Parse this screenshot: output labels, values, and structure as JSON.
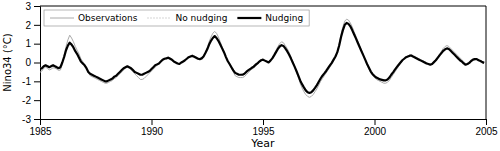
{
  "chart_data": {
    "type": "line",
    "xlabel": "Year",
    "ylabel": "Nino34 (°C)",
    "xlim": [
      1985,
      2005
    ],
    "ylim": [
      -3,
      3
    ],
    "xticks": [
      1985,
      1990,
      1995,
      2000,
      2005
    ],
    "yticks": [
      -3,
      -2,
      -1,
      0,
      1,
      2,
      3
    ],
    "grid": false,
    "legend": "upper left",
    "x": [
      1985,
      1985.0833333333333,
      1985.1666666666667,
      1985.25,
      1985.3333333333333,
      1985.4166666666667,
      1985.5,
      1985.5833333333333,
      1985.6666666666667,
      1985.75,
      1985.8333333333333,
      1985.9166666666667,
      1986,
      1986.0833333333333,
      1986.1666666666667,
      1986.25,
      1986.3333333333333,
      1986.4166666666667,
      1986.5,
      1986.5833333333333,
      1986.6666666666667,
      1986.75,
      1986.8333333333333,
      1986.9166666666667,
      1987,
      1987.0833333333333,
      1987.1666666666667,
      1987.25,
      1987.3333333333333,
      1987.4166666666667,
      1987.5,
      1987.5833333333333,
      1987.6666666666667,
      1987.75,
      1987.8333333333333,
      1987.9166666666667,
      1988,
      1988.0833333333333,
      1988.1666666666667,
      1988.25,
      1988.3333333333333,
      1988.4166666666667,
      1988.5,
      1988.5833333333333,
      1988.6666666666667,
      1988.75,
      1988.8333333333333,
      1988.9166666666667,
      1989,
      1989.0833333333333,
      1989.1666666666667,
      1989.25,
      1989.3333333333333,
      1989.4166666666667,
      1989.5,
      1989.5833333333333,
      1989.6666666666667,
      1989.75,
      1989.8333333333333,
      1989.9166666666667,
      1990,
      1990.0833333333333,
      1990.1666666666667,
      1990.25,
      1990.3333333333333,
      1990.4166666666667,
      1990.5,
      1990.5833333333333,
      1990.6666666666667,
      1990.75,
      1990.8333333333333,
      1990.9166666666667,
      1991,
      1991.0833333333333,
      1991.1666666666667,
      1991.25,
      1991.3333333333333,
      1991.4166666666667,
      1991.5,
      1991.5833333333333,
      1991.6666666666667,
      1991.75,
      1991.8333333333333,
      1991.9166666666667,
      1992,
      1992.0833333333333,
      1992.1666666666667,
      1992.25,
      1992.3333333333333,
      1992.4166666666667,
      1992.5,
      1992.5833333333333,
      1992.6666666666667,
      1992.75,
      1992.8333333333333,
      1992.9166666666667,
      1993,
      1993.0833333333333,
      1993.1666666666667,
      1993.25,
      1993.3333333333333,
      1993.4166666666667,
      1993.5,
      1993.5833333333333,
      1993.6666666666667,
      1993.75,
      1993.8333333333333,
      1993.9166666666667,
      1994,
      1994.0833333333333,
      1994.1666666666667,
      1994.25,
      1994.3333333333333,
      1994.4166666666667,
      1994.5,
      1994.5833333333333,
      1994.6666666666667,
      1994.75,
      1994.8333333333333,
      1994.9166666666667,
      1995,
      1995.0833333333333,
      1995.1666666666667,
      1995.25,
      1995.3333333333333,
      1995.4166666666667,
      1995.5,
      1995.5833333333333,
      1995.6666666666667,
      1995.75,
      1995.8333333333333,
      1995.9166666666667,
      1996,
      1996.0833333333333,
      1996.1666666666667,
      1996.25,
      1996.3333333333333,
      1996.4166666666667,
      1996.5,
      1996.5833333333333,
      1996.6666666666667,
      1996.75,
      1996.8333333333333,
      1996.9166666666667,
      1997,
      1997.0833333333333,
      1997.1666666666667,
      1997.25,
      1997.3333333333333,
      1997.4166666666667,
      1997.5,
      1997.5833333333333,
      1997.6666666666667,
      1997.75,
      1997.8333333333333,
      1997.9166666666667,
      1998,
      1998.0833333333333,
      1998.1666666666667,
      1998.25,
      1998.3333333333333,
      1998.4166666666667,
      1998.5,
      1998.5833333333333,
      1998.6666666666667,
      1998.75,
      1998.8333333333333,
      1998.9166666666667,
      1999,
      1999.0833333333333,
      1999.1666666666667,
      1999.25,
      1999.3333333333333,
      1999.4166666666667,
      1999.5,
      1999.5833333333333,
      1999.6666666666667,
      1999.75,
      1999.8333333333333,
      1999.9166666666667,
      2000,
      2000.0833333333333,
      2000.1666666666667,
      2000.25,
      2000.3333333333333,
      2000.4166666666667,
      2000.5,
      2000.5833333333333,
      2000.6666666666667,
      2000.75,
      2000.8333333333333,
      2000.9166666666667,
      2001,
      2001.0833333333333,
      2001.1666666666667,
      2001.25,
      2001.3333333333333,
      2001.4166666666667,
      2001.5,
      2001.5833333333333,
      2001.6666666666667,
      2001.75,
      2001.8333333333333,
      2001.9166666666667,
      2002,
      2002.0833333333333,
      2002.1666666666667,
      2002.25,
      2002.3333333333333,
      2002.4166666666667,
      2002.5,
      2002.5833333333333,
      2002.6666666666667,
      2002.75,
      2002.8333333333333,
      2002.9166666666667,
      2003,
      2003.0833333333333,
      2003.1666666666667,
      2003.25,
      2003.3333333333333,
      2003.4166666666667,
      2003.5,
      2003.5833333333333,
      2003.6666666666667,
      2003.75,
      2003.8333333333333,
      2003.9166666666667,
      2004,
      2004.0833333333333,
      2004.1666666666667,
      2004.25,
      2004.3333333333333,
      2004.4166666666667,
      2004.5,
      2004.5833333333333,
      2004.6666666666667,
      2004.75,
      2004.8333333333333,
      2004.9166666666667
    ],
    "series": [
      {
        "name": "Observations",
        "color": "#aaaaaa",
        "line_style": "solid",
        "values": [
          -0.52,
          -0.45,
          -0.3,
          -0.25,
          -0.3,
          -0.4,
          -0.35,
          -0.28,
          -0.3,
          -0.35,
          -0.42,
          -0.4,
          -0.1,
          0.4,
          0.85,
          1.2,
          1.45,
          1.3,
          1.1,
          0.85,
          0.65,
          0.45,
          0.2,
          0.05,
          -0.1,
          -0.3,
          -0.55,
          -0.7,
          -0.75,
          -0.8,
          -0.85,
          -0.9,
          -0.95,
          -1.0,
          -1.05,
          -1.1,
          -1.1,
          -1.05,
          -1.0,
          -0.95,
          -0.85,
          -0.8,
          -0.7,
          -0.6,
          -0.5,
          -0.4,
          -0.3,
          -0.25,
          -0.3,
          -0.4,
          -0.5,
          -0.6,
          -0.7,
          -0.8,
          -0.9,
          -0.9,
          -0.85,
          -0.75,
          -0.65,
          -0.55,
          -0.45,
          -0.35,
          -0.25,
          -0.15,
          -0.1,
          0.05,
          0.15,
          0.2,
          0.25,
          0.3,
          0.25,
          0.2,
          0.1,
          0.0,
          -0.05,
          -0.1,
          -0.05,
          0.0,
          0.1,
          0.2,
          0.3,
          0.35,
          0.4,
          0.35,
          0.3,
          0.25,
          0.2,
          0.25,
          0.35,
          0.55,
          0.8,
          1.1,
          1.35,
          1.55,
          1.65,
          1.55,
          1.35,
          1.1,
          0.85,
          0.6,
          0.35,
          0.1,
          -0.1,
          -0.3,
          -0.5,
          -0.7,
          -0.75,
          -0.8,
          -0.8,
          -0.8,
          -0.75,
          -0.65,
          -0.55,
          -0.45,
          -0.35,
          -0.3,
          -0.2,
          -0.1,
          0.0,
          0.1,
          0.15,
          0.1,
          0.05,
          0.0,
          0.1,
          0.25,
          0.45,
          0.65,
          0.85,
          1.0,
          1.1,
          1.05,
          0.9,
          0.75,
          0.55,
          0.3,
          0.05,
          -0.2,
          -0.5,
          -0.8,
          -1.1,
          -1.35,
          -1.55,
          -1.7,
          -1.8,
          -1.85,
          -1.8,
          -1.7,
          -1.55,
          -1.4,
          -1.2,
          -1.0,
          -0.85,
          -0.7,
          -0.55,
          -0.4,
          -0.25,
          -0.1,
          0.1,
          0.3,
          0.6,
          1.0,
          1.5,
          1.9,
          2.2,
          2.3,
          2.25,
          2.1,
          1.9,
          1.65,
          1.4,
          1.15,
          0.9,
          0.65,
          0.4,
          0.15,
          -0.1,
          -0.35,
          -0.55,
          -0.7,
          -0.8,
          -0.9,
          -0.95,
          -1.0,
          -1.05,
          -1.1,
          -1.1,
          -1.05,
          -0.95,
          -0.8,
          -0.65,
          -0.5,
          -0.35,
          -0.2,
          -0.05,
          0.1,
          0.2,
          0.3,
          0.35,
          0.4,
          0.4,
          0.35,
          0.3,
          0.25,
          0.2,
          0.15,
          0.1,
          0.05,
          0.0,
          -0.05,
          -0.1,
          -0.05,
          0.05,
          0.15,
          0.3,
          0.45,
          0.6,
          0.75,
          0.85,
          0.9,
          0.85,
          0.75,
          0.65,
          0.55,
          0.45,
          0.35,
          0.25,
          0.15,
          0.05,
          -0.05,
          -0.1,
          -0.05,
          0.05,
          0.15,
          0.2,
          0.2,
          0.15,
          0.1,
          0.05,
          0.0
        ]
      },
      {
        "name": "No nudging",
        "color": "#aaaaaa",
        "line_style": "dotted",
        "values": [
          -0.3,
          -0.25,
          -0.18,
          -0.12,
          -0.15,
          -0.2,
          -0.15,
          -0.1,
          -0.15,
          -0.2,
          -0.25,
          -0.2,
          0.02,
          0.35,
          0.7,
          0.95,
          1.1,
          1.0,
          0.85,
          0.65,
          0.48,
          0.28,
          0.08,
          -0.02,
          -0.12,
          -0.28,
          -0.48,
          -0.58,
          -0.62,
          -0.68,
          -0.72,
          -0.78,
          -0.82,
          -0.88,
          -0.92,
          -0.98,
          -0.98,
          -0.92,
          -0.88,
          -0.82,
          -0.72,
          -0.68,
          -0.58,
          -0.48,
          -0.38,
          -0.28,
          -0.22,
          -0.18,
          -0.22,
          -0.28,
          -0.38,
          -0.48,
          -0.52,
          -0.58,
          -0.62,
          -0.62,
          -0.58,
          -0.52,
          -0.48,
          -0.42,
          -0.32,
          -0.22,
          -0.12,
          -0.08,
          -0.02,
          0.08,
          0.18,
          0.22,
          0.25,
          0.28,
          0.22,
          0.18,
          0.08,
          0.02,
          -0.02,
          -0.05,
          0.02,
          0.08,
          0.15,
          0.22,
          0.3,
          0.35,
          0.38,
          0.32,
          0.28,
          0.22,
          0.2,
          0.25,
          0.35,
          0.52,
          0.72,
          0.98,
          1.18,
          1.32,
          1.42,
          1.32,
          1.18,
          0.98,
          0.78,
          0.58,
          0.32,
          0.1,
          -0.05,
          -0.22,
          -0.38,
          -0.52,
          -0.58,
          -0.62,
          -0.62,
          -0.62,
          -0.58,
          -0.48,
          -0.4,
          -0.32,
          -0.25,
          -0.2,
          -0.1,
          -0.02,
          0.08,
          0.15,
          0.18,
          0.12,
          0.08,
          0.02,
          0.12,
          0.25,
          0.4,
          0.58,
          0.75,
          0.88,
          0.95,
          0.9,
          0.78,
          0.62,
          0.45,
          0.25,
          0.02,
          -0.18,
          -0.42,
          -0.68,
          -0.92,
          -1.12,
          -1.28,
          -1.45,
          -1.55,
          -1.6,
          -1.55,
          -1.45,
          -1.32,
          -1.18,
          -1.0,
          -0.82,
          -0.68,
          -0.55,
          -0.42,
          -0.28,
          -0.12,
          0.0,
          0.18,
          0.35,
          0.58,
          0.92,
          1.38,
          1.75,
          2.05,
          2.12,
          2.08,
          1.95,
          1.75,
          1.52,
          1.3,
          1.08,
          0.85,
          0.62,
          0.4,
          0.18,
          -0.05,
          -0.25,
          -0.45,
          -0.6,
          -0.7,
          -0.78,
          -0.82,
          -0.88,
          -0.9,
          -0.92,
          -0.92,
          -0.88,
          -0.78,
          -0.62,
          -0.48,
          -0.35,
          -0.22,
          -0.1,
          0.02,
          0.14,
          0.22,
          0.3,
          0.35,
          0.38,
          0.38,
          0.32,
          0.28,
          0.22,
          0.18,
          0.12,
          0.08,
          0.02,
          -0.02,
          -0.05,
          -0.08,
          -0.05,
          0.05,
          0.15,
          0.28,
          0.4,
          0.52,
          0.65,
          0.72,
          0.78,
          0.75,
          0.65,
          0.55,
          0.45,
          0.35,
          0.25,
          0.15,
          0.08,
          -0.02,
          -0.08,
          -0.05,
          0.0,
          0.1,
          0.18,
          0.2,
          0.2,
          0.15,
          0.1,
          0.05,
          0.0
        ]
      },
      {
        "name": "Nudging",
        "color": "#000000",
        "line_style": "solid",
        "values": [
          -0.35,
          -0.3,
          -0.2,
          -0.15,
          -0.2,
          -0.25,
          -0.2,
          -0.15,
          -0.2,
          -0.25,
          -0.3,
          -0.25,
          0.0,
          0.3,
          0.65,
          0.9,
          1.05,
          0.95,
          0.8,
          0.6,
          0.45,
          0.25,
          0.05,
          -0.05,
          -0.15,
          -0.3,
          -0.5,
          -0.6,
          -0.65,
          -0.7,
          -0.75,
          -0.8,
          -0.85,
          -0.9,
          -0.95,
          -1.0,
          -1.0,
          -0.95,
          -0.9,
          -0.85,
          -0.75,
          -0.7,
          -0.6,
          -0.5,
          -0.4,
          -0.3,
          -0.25,
          -0.2,
          -0.25,
          -0.3,
          -0.4,
          -0.5,
          -0.55,
          -0.6,
          -0.65,
          -0.65,
          -0.6,
          -0.55,
          -0.5,
          -0.45,
          -0.35,
          -0.25,
          -0.15,
          -0.1,
          -0.05,
          0.05,
          0.15,
          0.2,
          0.22,
          0.25,
          0.2,
          0.15,
          0.05,
          0.0,
          -0.05,
          -0.08,
          0.0,
          0.05,
          0.12,
          0.2,
          0.28,
          0.32,
          0.35,
          0.3,
          0.25,
          0.2,
          0.18,
          0.22,
          0.32,
          0.5,
          0.7,
          0.95,
          1.15,
          1.3,
          1.4,
          1.3,
          1.15,
          0.95,
          0.75,
          0.55,
          0.3,
          0.08,
          -0.08,
          -0.25,
          -0.42,
          -0.55,
          -0.6,
          -0.65,
          -0.65,
          -0.65,
          -0.6,
          -0.5,
          -0.42,
          -0.35,
          -0.28,
          -0.22,
          -0.12,
          -0.05,
          0.05,
          0.12,
          0.15,
          0.1,
          0.05,
          0.0,
          0.1,
          0.22,
          0.38,
          0.55,
          0.72,
          0.85,
          0.92,
          0.88,
          0.75,
          0.6,
          0.42,
          0.22,
          0.0,
          -0.22,
          -0.45,
          -0.7,
          -0.95,
          -1.15,
          -1.32,
          -1.48,
          -1.58,
          -1.62,
          -1.58,
          -1.48,
          -1.35,
          -1.2,
          -1.02,
          -0.85,
          -0.7,
          -0.58,
          -0.45,
          -0.3,
          -0.15,
          -0.02,
          0.15,
          0.32,
          0.55,
          0.9,
          1.35,
          1.72,
          2.0,
          2.1,
          2.05,
          1.92,
          1.72,
          1.5,
          1.28,
          1.05,
          0.82,
          0.6,
          0.38,
          0.15,
          -0.08,
          -0.28,
          -0.48,
          -0.62,
          -0.72,
          -0.8,
          -0.85,
          -0.9,
          -0.92,
          -0.95,
          -0.95,
          -0.9,
          -0.8,
          -0.65,
          -0.52,
          -0.38,
          -0.25,
          -0.12,
          0.0,
          0.12,
          0.2,
          0.28,
          0.32,
          0.36,
          0.36,
          0.3,
          0.25,
          0.2,
          0.15,
          0.1,
          0.05,
          0.0,
          -0.05,
          -0.08,
          -0.12,
          -0.08,
          0.02,
          0.12,
          0.25,
          0.38,
          0.5,
          0.62,
          0.7,
          0.75,
          0.72,
          0.62,
          0.52,
          0.42,
          0.32,
          0.22,
          0.12,
          0.05,
          -0.05,
          -0.12,
          -0.08,
          -0.02,
          0.08,
          0.15,
          0.18,
          0.18,
          0.12,
          0.08,
          0.02,
          -0.02
        ]
      }
    ]
  }
}
